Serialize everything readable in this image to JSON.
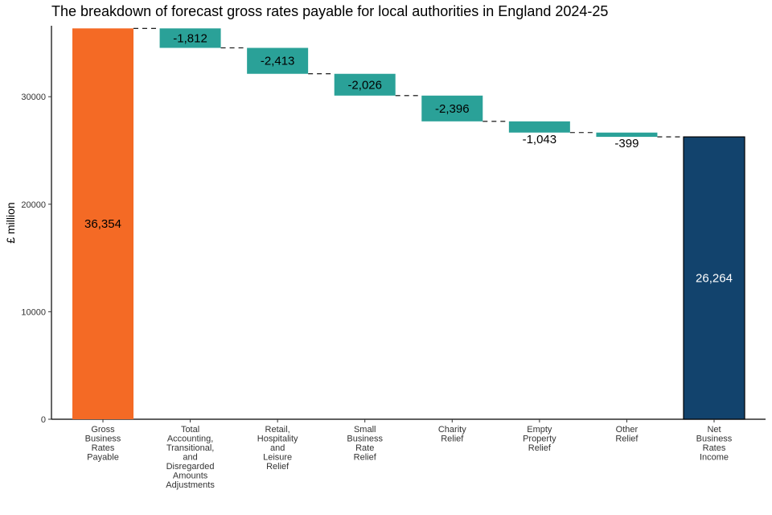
{
  "chart_data": {
    "type": "bar",
    "subtype": "waterfall",
    "title": "The breakdown of forecast gross rates payable for local authorities in England 2024-25",
    "ylabel": "£ million",
    "xlabel": "",
    "ylim": [
      0,
      36600
    ],
    "yticks": [
      0,
      10000,
      20000,
      30000
    ],
    "grid": false,
    "legend": "none",
    "categories": [
      {
        "lines": [
          "Gross",
          "Business",
          "Rates",
          "Payable"
        ]
      },
      {
        "lines": [
          "Total",
          "Accounting,",
          "Transitional,",
          "and",
          "Disregarded",
          "Amounts",
          "Adjustments"
        ]
      },
      {
        "lines": [
          "Retail,",
          "Hospitality",
          "and",
          "Leisure",
          "Relief"
        ]
      },
      {
        "lines": [
          "Small",
          "Business",
          "Rate",
          "Relief"
        ]
      },
      {
        "lines": [
          "Charity",
          "Relief"
        ]
      },
      {
        "lines": [
          "Empty",
          "Property",
          "Relief"
        ]
      },
      {
        "lines": [
          "Other",
          "Relief"
        ]
      },
      {
        "lines": [
          "Net",
          "Business",
          "Rates",
          "Income"
        ]
      }
    ],
    "values": [
      36354,
      -1812,
      -2413,
      -2026,
      -2396,
      -1043,
      -399,
      26264
    ],
    "labels": [
      "36,354",
      "-1,812",
      "-2,413",
      "-2,026",
      "-2,396",
      "-1,043",
      "-399",
      "26,264"
    ],
    "kinds": [
      "total",
      "delta",
      "delta",
      "delta",
      "delta",
      "delta",
      "delta",
      "total"
    ],
    "colors": {
      "gross": "#f46a25",
      "decrease": "#2aa198",
      "net": "#12436d",
      "net_outline": "#000000",
      "connector": "#000000"
    }
  }
}
